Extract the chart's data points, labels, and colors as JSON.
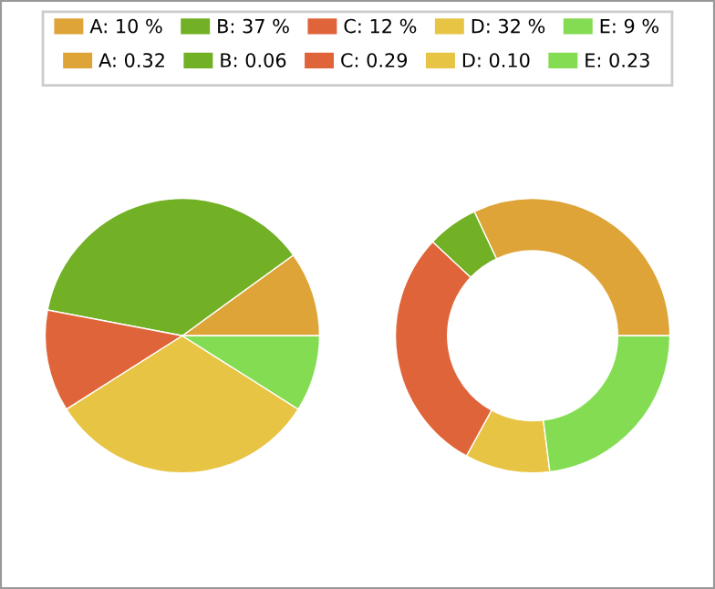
{
  "chart_data": [
    {
      "type": "pie",
      "categories": [
        "A",
        "B",
        "C",
        "D",
        "E"
      ],
      "values": [
        10,
        37,
        12,
        32,
        9
      ],
      "value_labels": [
        "10 %",
        "37 %",
        "12 %",
        "32 %",
        "9 %"
      ],
      "colors": [
        "#dea437",
        "#72b025",
        "#e0643a",
        "#e8c444",
        "#84dc52"
      ],
      "legend": "top"
    },
    {
      "type": "donut",
      "categories": [
        "A",
        "B",
        "C",
        "D",
        "E"
      ],
      "values": [
        0.32,
        0.06,
        0.29,
        0.1,
        0.23
      ],
      "value_labels": [
        "0.32",
        "0.06",
        "0.29",
        "0.10",
        "0.23"
      ],
      "colors": [
        "#dea437",
        "#72b025",
        "#e0643a",
        "#e8c444",
        "#84dc52"
      ],
      "legend": "top"
    }
  ]
}
